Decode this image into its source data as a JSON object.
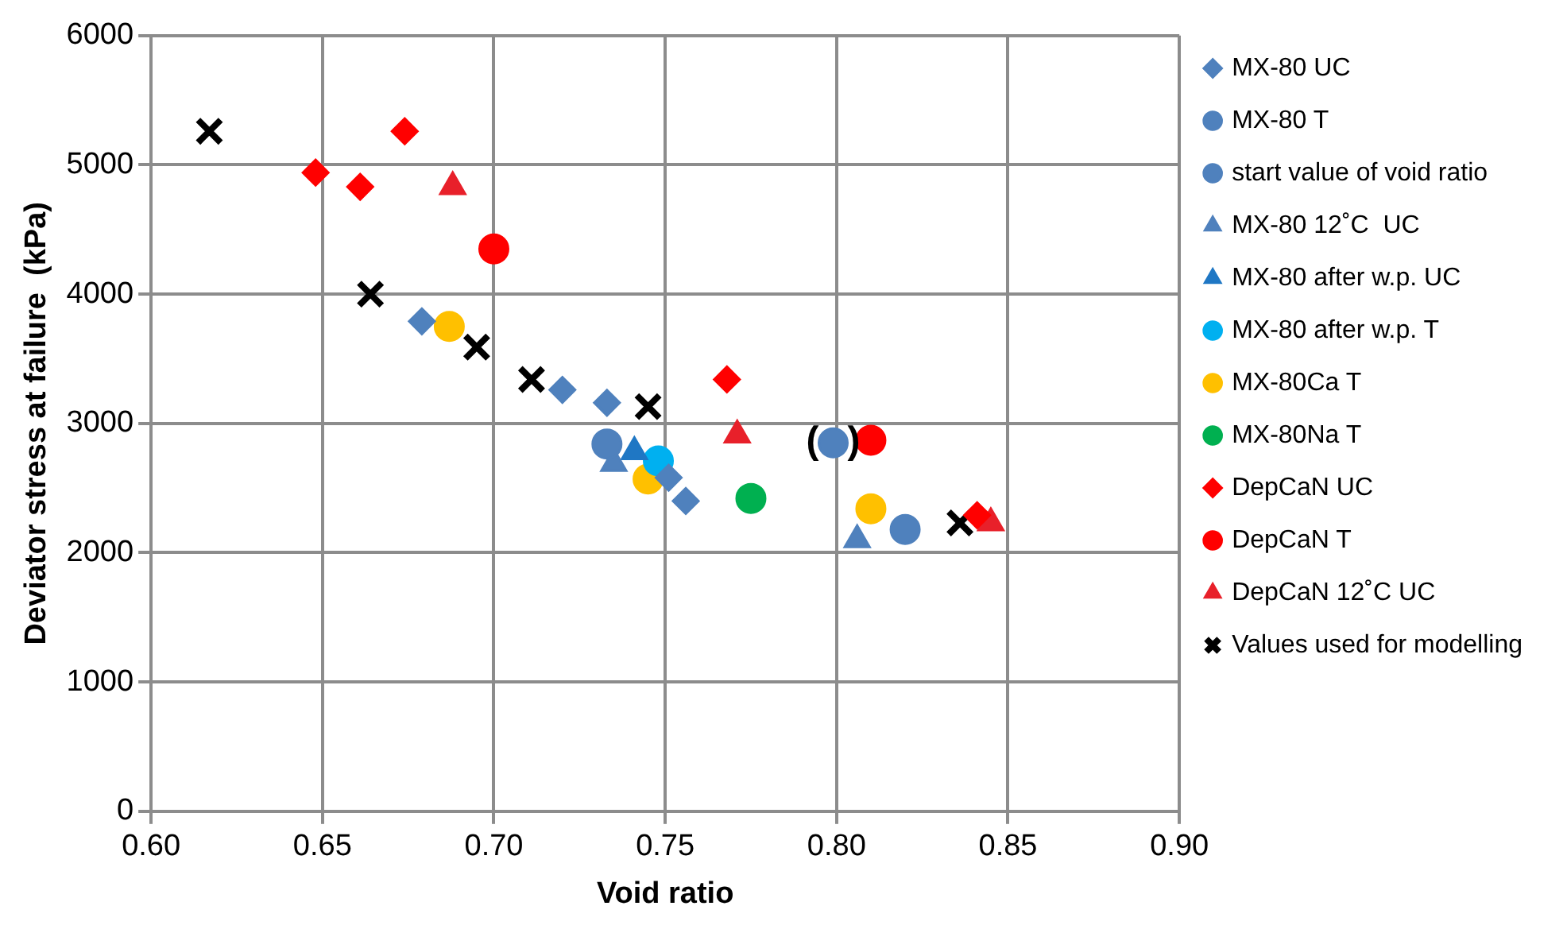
{
  "chart_data": {
    "type": "scatter",
    "xlabel": "Void ratio",
    "ylabel": "Deviator stress at failure  (kPa)",
    "xlim": [
      0.6,
      0.9
    ],
    "xticks": [
      {
        "value": 0.6,
        "label": "0.60"
      },
      {
        "value": 0.65,
        "label": "0.65"
      },
      {
        "value": 0.7,
        "label": "0.70"
      },
      {
        "value": 0.75,
        "label": "0.75"
      },
      {
        "value": 0.8,
        "label": "0.80"
      },
      {
        "value": 0.85,
        "label": "0.85"
      },
      {
        "value": 0.9,
        "label": "0.90"
      }
    ],
    "ylim": [
      0,
      6000
    ],
    "yticks": [
      0,
      1000,
      2000,
      3000,
      4000,
      5000,
      6000
    ],
    "grid": true,
    "legend": "right",
    "series": [
      {
        "name": "MX-80 UC",
        "color": "#4f81bd",
        "marker": "diamond",
        "x": [
          0.679,
          0.72,
          0.733,
          0.751,
          0.756
        ],
        "values": [
          3790,
          3260,
          3160,
          2580,
          2400
        ]
      },
      {
        "name": "MX-80 T",
        "color": "#4f81bd",
        "marker": "circle",
        "x": [
          0.799,
          0.82
        ],
        "values": [
          2850,
          2180
        ]
      },
      {
        "name": "start value of void ratio",
        "color": "#4f81bd",
        "marker": "circle",
        "x": [
          0.733
        ],
        "values": [
          2840
        ]
      },
      {
        "name": "MX-80 12˚C  UC",
        "color": "#4f81bd",
        "marker": "triangle",
        "x": [
          0.735,
          0.806
        ],
        "values": [
          2690,
          2100
        ]
      },
      {
        "name": "MX-80 after w.p. UC",
        "color": "#1f77c4",
        "marker": "triangle",
        "x": [
          0.741
        ],
        "values": [
          2780
        ]
      },
      {
        "name": "MX-80 after w.p. T",
        "color": "#00b0f0",
        "marker": "circle",
        "x": [
          0.748
        ],
        "values": [
          2710
        ]
      },
      {
        "name": "MX-80Ca T",
        "color": "#ffc000",
        "marker": "circle",
        "x": [
          0.687,
          0.745,
          0.81
        ],
        "values": [
          3750,
          2570,
          2340
        ]
      },
      {
        "name": "MX-80Na T",
        "color": "#00b050",
        "marker": "circle",
        "x": [
          0.775
        ],
        "values": [
          2420
        ]
      },
      {
        "name": "DepCaN UC",
        "color": "#ff0000",
        "marker": "diamond",
        "x": [
          0.648,
          0.661,
          0.674,
          0.768,
          0.841
        ],
        "values": [
          4940,
          4830,
          5260,
          3340,
          2290
        ]
      },
      {
        "name": "DepCaN T",
        "color": "#ff0000",
        "marker": "circle",
        "x": [
          0.7,
          0.81
        ],
        "values": [
          4350,
          2870
        ]
      },
      {
        "name": "DepCaN 12˚C UC",
        "color": "#e8202a",
        "marker": "triangle",
        "x": [
          0.688,
          0.771,
          0.845
        ],
        "values": [
          4830,
          2910,
          2230
        ]
      },
      {
        "name": "Values used for modelling",
        "color": "#000000",
        "marker": "cross",
        "x": [
          0.617,
          0.664,
          0.695,
          0.711,
          0.745,
          0.836
        ],
        "values": [
          5260,
          4000,
          3590,
          3340,
          3130,
          2230
        ]
      }
    ],
    "annotations": [
      {
        "text": "(",
        "x": 0.799,
        "y": 2850
      },
      {
        "text": ")",
        "x": 0.799,
        "y": 2850
      }
    ]
  }
}
